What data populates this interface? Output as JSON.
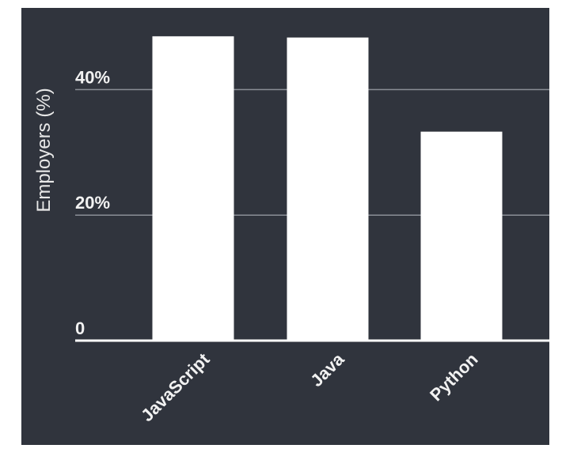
{
  "chart_data": {
    "type": "bar",
    "categories": [
      "JavaScript",
      "Java",
      "Python"
    ],
    "values": [
      48.5,
      48.3,
      33.3
    ],
    "ylabel": "Employers (%)",
    "xlabel": "",
    "ylim": [
      0,
      50
    ],
    "yticks": [
      0,
      20,
      40
    ],
    "ytick_labels": [
      "0",
      "20%",
      "40%"
    ],
    "grid": true,
    "colors": {
      "background": "#30343d",
      "bar": "#ffffff",
      "grid": "#8a8e96",
      "axis": "#ffffff",
      "text": "#f2f2f2"
    }
  }
}
